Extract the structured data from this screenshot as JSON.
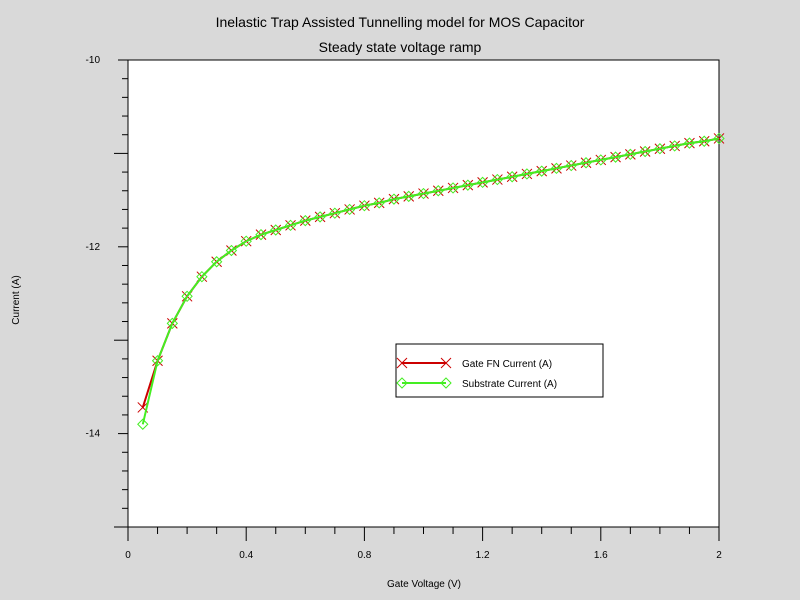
{
  "chart_data": {
    "type": "line",
    "title": "Inelastic Trap Assisted Tunnelling model for MOS Capacitor",
    "subtitle": "Steady state voltage ramp",
    "xlabel": "Gate Voltage (V)",
    "ylabel": "Current (A)",
    "xlim": [
      0,
      2
    ],
    "ylim": [
      -15,
      -10
    ],
    "x_ticks": [
      "0",
      "0.4",
      "0.8",
      "1.2",
      "1.6",
      "2"
    ],
    "y_ticks": [
      "-10",
      "-12",
      "-14"
    ],
    "grid": false,
    "legend_position": "center-right",
    "x": [
      0.05,
      0.1,
      0.15,
      0.2,
      0.25,
      0.3,
      0.35,
      0.4,
      0.45,
      0.5,
      0.55,
      0.6,
      0.65,
      0.7,
      0.75,
      0.8,
      0.85,
      0.9,
      0.95,
      1.0,
      1.05,
      1.1,
      1.15,
      1.2,
      1.25,
      1.3,
      1.35,
      1.4,
      1.45,
      1.5,
      1.55,
      1.6,
      1.65,
      1.7,
      1.75,
      1.8,
      1.85,
      1.9,
      1.95,
      2.0
    ],
    "series": [
      {
        "name": "Gate FN Current (A)",
        "color": "#cc0000",
        "marker": "x",
        "values": [
          -13.72,
          -13.22,
          -12.82,
          -12.53,
          -12.32,
          -12.16,
          -12.04,
          -11.94,
          -11.87,
          -11.82,
          -11.77,
          -11.72,
          -11.68,
          -11.64,
          -11.6,
          -11.56,
          -11.53,
          -11.49,
          -11.46,
          -11.43,
          -11.4,
          -11.37,
          -11.34,
          -11.31,
          -11.28,
          -11.25,
          -11.22,
          -11.19,
          -11.16,
          -11.13,
          -11.1,
          -11.07,
          -11.04,
          -11.01,
          -10.98,
          -10.95,
          -10.92,
          -10.89,
          -10.87,
          -10.84
        ]
      },
      {
        "name": "Substrate Current (A)",
        "color": "#44ee22",
        "marker": "diamond",
        "values": [
          -13.9,
          -13.22,
          -12.82,
          -12.53,
          -12.32,
          -12.16,
          -12.04,
          -11.94,
          -11.87,
          -11.82,
          -11.77,
          -11.72,
          -11.68,
          -11.64,
          -11.6,
          -11.56,
          -11.53,
          -11.49,
          -11.46,
          -11.43,
          -11.4,
          -11.37,
          -11.34,
          -11.31,
          -11.28,
          -11.25,
          -11.22,
          -11.19,
          -11.16,
          -11.13,
          -11.1,
          -11.07,
          -11.04,
          -11.01,
          -10.98,
          -10.95,
          -10.92,
          -10.89,
          -10.87,
          -10.84
        ]
      }
    ]
  }
}
